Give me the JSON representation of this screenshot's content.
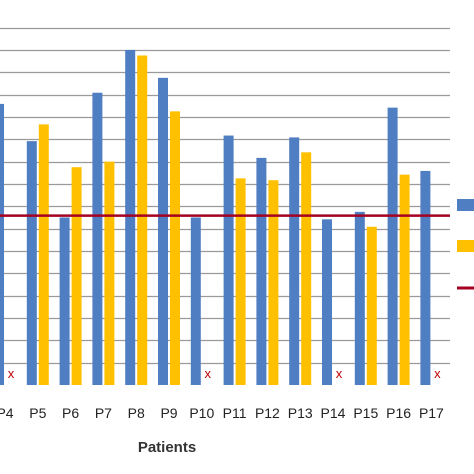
{
  "chart_data": {
    "type": "bar",
    "xlabel": "Patients",
    "ylabel": "",
    "categories": [
      "P4",
      "P5",
      "P6",
      "P7",
      "P8",
      "P9",
      "P10",
      "P11",
      "P12",
      "P13",
      "P14",
      "P15",
      "P16",
      "P17"
    ],
    "series": [
      {
        "color": "#4f7fc2",
        "values": [
          15.1,
          13.1,
          9.0,
          15.7,
          18.0,
          16.5,
          9.0,
          13.4,
          12.2,
          13.3,
          8.9,
          9.3,
          14.9,
          11.5
        ]
      },
      {
        "color": "#ffc000",
        "values": [
          null,
          14.0,
          11.7,
          12.0,
          17.7,
          14.7,
          null,
          11.1,
          11.0,
          12.5,
          null,
          8.5,
          11.3,
          null
        ]
      }
    ],
    "threshold": {
      "color": "#a50021",
      "value": 9.1
    },
    "missing_marker": "x",
    "ylim": [
      0,
      19.5
    ],
    "grid": true,
    "legend_position": "right"
  }
}
